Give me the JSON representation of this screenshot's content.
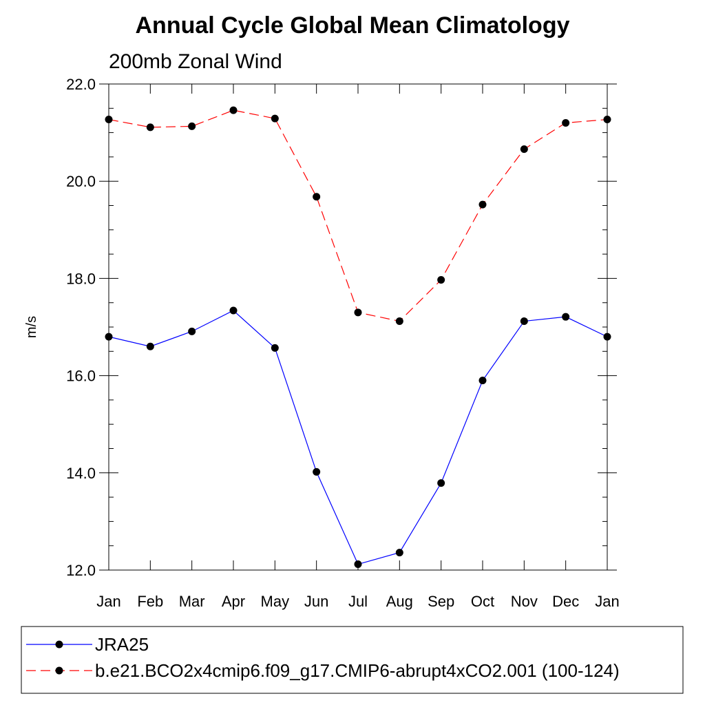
{
  "chart_data": {
    "type": "line",
    "title": "Annual Cycle Global Mean Climatology",
    "subtitle": "200mb Zonal Wind",
    "ylabel": "m/s",
    "xlabel": "",
    "ylim": [
      12.0,
      22.0
    ],
    "yticks": [
      "12.0",
      "14.0",
      "16.0",
      "18.0",
      "20.0",
      "22.0"
    ],
    "categories": [
      "Jan",
      "Feb",
      "Mar",
      "Apr",
      "May",
      "Jun",
      "Jul",
      "Aug",
      "Sep",
      "Oct",
      "Nov",
      "Dec",
      "Jan"
    ],
    "series": [
      {
        "name": "JRA25",
        "color": "#0000ff",
        "dash": "solid",
        "values": [
          16.8,
          16.6,
          16.91,
          17.34,
          16.57,
          14.02,
          12.12,
          12.36,
          13.79,
          15.9,
          17.12,
          17.21,
          16.8
        ]
      },
      {
        "name": "b.e21.BCO2x4cmip6.f09_g17.CMIP6-abrupt4xCO2.001 (100-124)",
        "color": "#ff0000",
        "dash": "dashed",
        "values": [
          21.27,
          21.11,
          21.13,
          21.46,
          21.29,
          19.68,
          17.3,
          17.12,
          17.97,
          19.52,
          20.66,
          21.2,
          21.27
        ]
      }
    ],
    "legend_position": "bottom"
  }
}
